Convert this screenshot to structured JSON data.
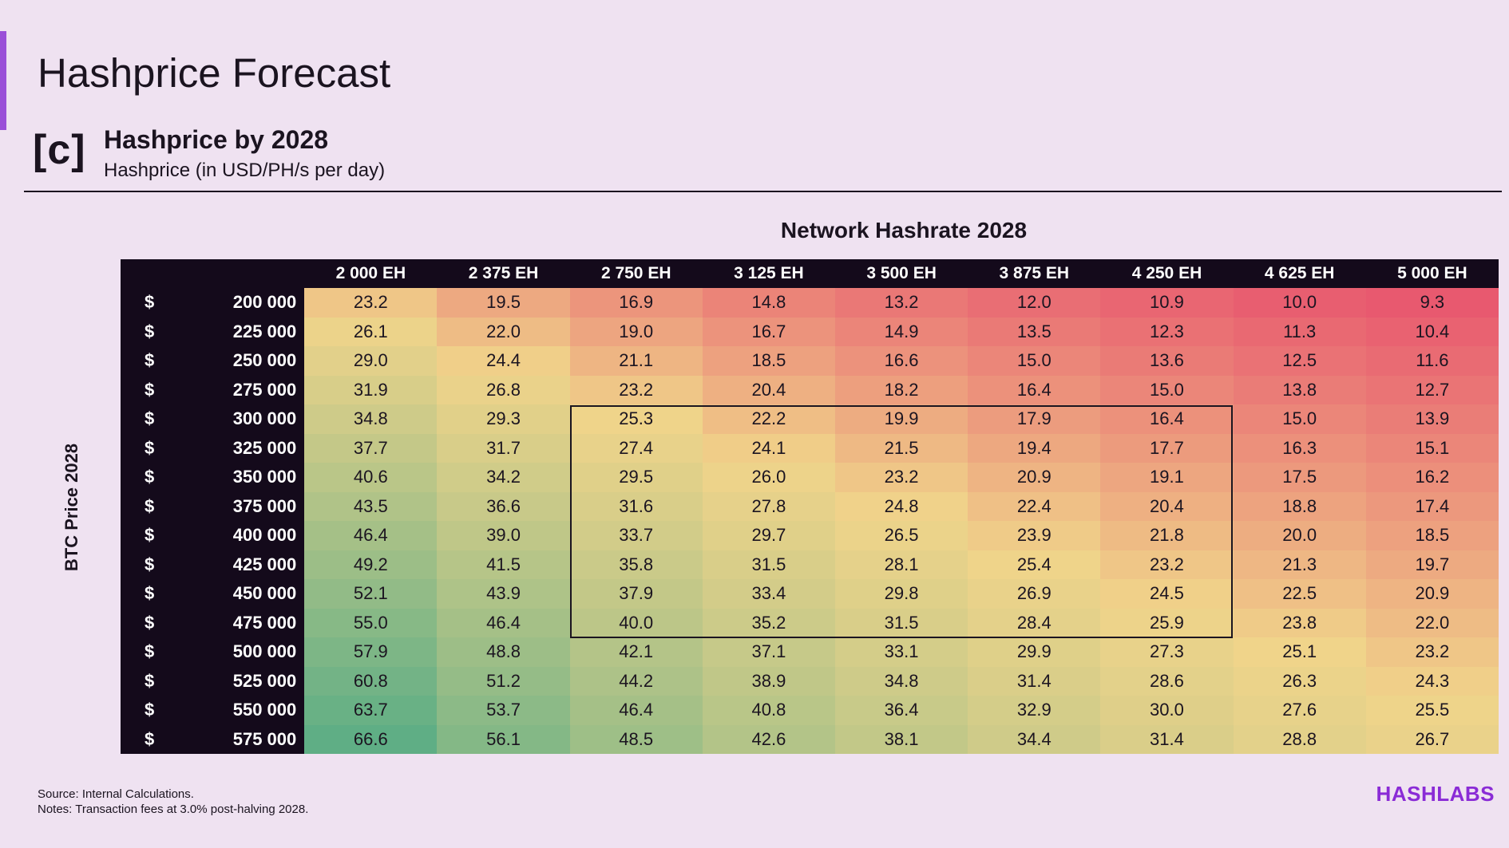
{
  "page": {
    "title": "Hashprice Forecast"
  },
  "section": {
    "badge": "[c]",
    "title": "Hashprice by 2028",
    "subtitle": "Hashprice (in USD/PH/s per day)"
  },
  "chart_data": {
    "type": "heatmap",
    "title": "Hashprice by 2028",
    "subtitle": "Hashprice (in USD/PH/s per day)",
    "column_axis_title": "Network Hashrate 2028",
    "row_axis_title": "BTC Price 2028",
    "currency_symbol": "$",
    "columns": [
      "2 000 EH",
      "2 375 EH",
      "2 750 EH",
      "3 125 EH",
      "3 500 EH",
      "3 875 EH",
      "4 250 EH",
      "4 625 EH",
      "5 000 EH"
    ],
    "rows": [
      "200 000",
      "225 000",
      "250 000",
      "275 000",
      "300 000",
      "325 000",
      "350 000",
      "375 000",
      "400 000",
      "425 000",
      "450 000",
      "475 000",
      "500 000",
      "525 000",
      "550 000",
      "575 000"
    ],
    "values": [
      [
        "23.2",
        "19.5",
        "16.9",
        "14.8",
        "13.2",
        "12.0",
        "10.9",
        "10.0",
        "9.3"
      ],
      [
        "26.1",
        "22.0",
        "19.0",
        "16.7",
        "14.9",
        "13.5",
        "12.3",
        "11.3",
        "10.4"
      ],
      [
        "29.0",
        "24.4",
        "21.1",
        "18.5",
        "16.6",
        "15.0",
        "13.6",
        "12.5",
        "11.6"
      ],
      [
        "31.9",
        "26.8",
        "23.2",
        "20.4",
        "18.2",
        "16.4",
        "15.0",
        "13.8",
        "12.7"
      ],
      [
        "34.8",
        "29.3",
        "25.3",
        "22.2",
        "19.9",
        "17.9",
        "16.4",
        "15.0",
        "13.9"
      ],
      [
        "37.7",
        "31.7",
        "27.4",
        "24.1",
        "21.5",
        "19.4",
        "17.7",
        "16.3",
        "15.1"
      ],
      [
        "40.6",
        "34.2",
        "29.5",
        "26.0",
        "23.2",
        "20.9",
        "19.1",
        "17.5",
        "16.2"
      ],
      [
        "43.5",
        "36.6",
        "31.6",
        "27.8",
        "24.8",
        "22.4",
        "20.4",
        "18.8",
        "17.4"
      ],
      [
        "46.4",
        "39.0",
        "33.7",
        "29.7",
        "26.5",
        "23.9",
        "21.8",
        "20.0",
        "18.5"
      ],
      [
        "49.2",
        "41.5",
        "35.8",
        "31.5",
        "28.1",
        "25.4",
        "23.2",
        "21.3",
        "19.7"
      ],
      [
        "52.1",
        "43.9",
        "37.9",
        "33.4",
        "29.8",
        "26.9",
        "24.5",
        "22.5",
        "20.9"
      ],
      [
        "55.0",
        "46.4",
        "40.0",
        "35.2",
        "31.5",
        "28.4",
        "25.9",
        "23.8",
        "22.0"
      ],
      [
        "57.9",
        "48.8",
        "42.1",
        "37.1",
        "33.1",
        "29.9",
        "27.3",
        "25.1",
        "23.2"
      ],
      [
        "60.8",
        "51.2",
        "44.2",
        "38.9",
        "34.8",
        "31.4",
        "28.6",
        "26.3",
        "24.3"
      ],
      [
        "63.7",
        "53.7",
        "46.4",
        "40.8",
        "36.4",
        "32.9",
        "30.0",
        "27.6",
        "25.5"
      ],
      [
        "66.6",
        "56.1",
        "48.5",
        "42.6",
        "38.1",
        "34.4",
        "31.4",
        "28.8",
        "26.7"
      ]
    ],
    "highlight": {
      "row_start": 4,
      "row_end": 11,
      "col_start": 2,
      "col_end": 6
    },
    "color_scale": {
      "low": "#e8596f",
      "mid": "#f0d48a",
      "high": "#5fae85"
    }
  },
  "footer": {
    "source": "Source: Internal Calculations.",
    "notes": "Notes: Transaction fees at 3.0% post-halving 2028."
  },
  "brand": {
    "logo_text": "HASHLABS",
    "accent_color": "#9a4fd8"
  }
}
